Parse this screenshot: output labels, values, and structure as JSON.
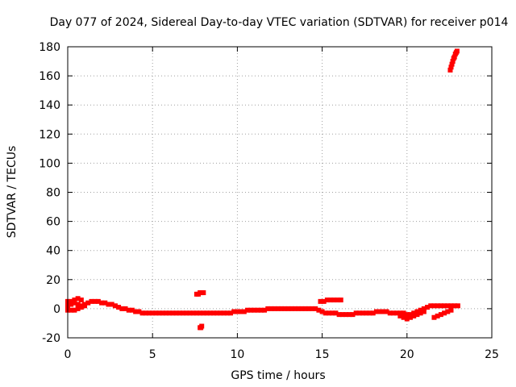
{
  "chart_data": {
    "type": "scatter",
    "title": "Day 077 of 2024, Sidereal Day-to-day VTEC variation (SDTVAR) for receiver p014",
    "xlabel": "GPS time / hours",
    "ylabel": "SDTVAR / TECUs",
    "xlim": [
      0,
      25
    ],
    "ylim": [
      -20,
      180
    ],
    "grid": true,
    "legend": "none",
    "x_ticks": [
      "0",
      "5",
      "10",
      "15",
      "20",
      "25"
    ],
    "y_ticks": [
      "-20",
      "0",
      "20",
      "40",
      "60",
      "80",
      "100",
      "120",
      "140",
      "160",
      "180"
    ],
    "x_tick_values": [
      0,
      5,
      10,
      15,
      20,
      25
    ],
    "y_tick_values": [
      -20,
      0,
      20,
      40,
      60,
      80,
      100,
      120,
      140,
      160,
      180
    ],
    "marker_color": "#ff0000",
    "series": [
      {
        "name": "main-trace",
        "x": [
          0.0,
          0.2,
          0.4,
          0.6,
          0.8,
          1.0,
          1.2,
          1.4,
          1.6,
          1.8,
          2.0,
          2.2,
          2.4,
          2.6,
          2.8,
          3.0,
          3.2,
          3.4,
          3.6,
          3.8,
          4.0,
          4.2,
          4.4,
          4.6,
          4.8,
          5.0,
          5.2,
          5.4,
          5.6,
          5.8,
          6.0,
          6.2,
          6.4,
          6.6,
          6.8,
          7.0,
          7.2,
          7.4,
          7.6,
          7.8,
          8.0,
          8.2,
          8.4,
          8.6,
          8.8,
          9.0,
          9.2,
          9.4,
          9.6,
          9.8,
          10.0,
          10.2,
          10.4,
          10.6,
          10.8,
          11.0,
          11.2,
          11.4,
          11.6,
          11.8,
          12.0,
          12.2,
          12.4,
          12.6,
          12.8,
          13.0,
          13.2,
          13.4,
          13.6,
          13.8,
          14.0,
          14.2,
          14.4,
          14.6,
          14.8,
          15.0,
          15.2,
          15.4,
          15.6,
          15.8,
          16.0,
          16.2,
          16.4,
          16.6,
          16.8,
          17.0,
          17.2,
          17.4,
          17.6,
          17.8,
          18.0,
          18.2,
          18.4,
          18.6,
          18.8,
          19.0,
          19.2,
          19.4,
          19.6,
          19.8,
          20.0,
          20.2,
          20.4,
          20.6,
          20.8,
          21.0,
          21.2,
          21.4,
          21.6,
          21.8,
          22.0,
          22.2,
          22.4,
          22.6,
          22.8,
          23.0
        ],
        "y": [
          2,
          3,
          4,
          3,
          2,
          3,
          4,
          5,
          5,
          5,
          4,
          4,
          3,
          3,
          2,
          1,
          0,
          0,
          -1,
          -1,
          -2,
          -2,
          -3,
          -3,
          -3,
          -3,
          -3,
          -3,
          -3,
          -3,
          -3,
          -3,
          -3,
          -3,
          -3,
          -3,
          -3,
          -3,
          -3,
          -3,
          -3,
          -3,
          -3,
          -3,
          -3,
          -3,
          -3,
          -3,
          -3,
          -2,
          -2,
          -2,
          -2,
          -1,
          -1,
          -1,
          -1,
          -1,
          -1,
          0,
          0,
          0,
          0,
          0,
          0,
          0,
          0,
          0,
          0,
          0,
          0,
          0,
          0,
          0,
          -1,
          -2,
          -3,
          -3,
          -3,
          -3,
          -4,
          -4,
          -4,
          -4,
          -4,
          -3,
          -3,
          -3,
          -3,
          -3,
          -3,
          -2,
          -2,
          -2,
          -2,
          -3,
          -3,
          -3,
          -3,
          -3,
          -4,
          -4,
          -3,
          -2,
          -1,
          0,
          1,
          2,
          2,
          2,
          2,
          2,
          2,
          2,
          2,
          2
        ]
      },
      {
        "name": "lower-branch",
        "x": [
          0.0,
          0.2,
          0.4,
          0.6,
          0.8,
          1.0,
          19.6,
          19.8,
          20.0,
          20.2,
          20.4,
          20.6,
          20.8,
          21.0,
          21.6,
          21.8,
          22.0,
          22.2,
          22.4,
          22.6
        ],
        "y": [
          -1,
          -1,
          -1,
          0,
          1,
          2,
          -5,
          -6,
          -7,
          -6,
          -5,
          -4,
          -3,
          -2,
          -6,
          -5,
          -4,
          -3,
          -2,
          -1
        ]
      },
      {
        "name": "upper-branch",
        "x": [
          0.0,
          0.2,
          0.4,
          0.6,
          0.8
        ],
        "y": [
          5,
          5,
          6,
          7,
          6
        ]
      },
      {
        "name": "segment-near-8h",
        "x": [
          7.6,
          7.7,
          7.8,
          7.9,
          8.0
        ],
        "y": [
          10,
          10,
          11,
          11,
          11
        ]
      },
      {
        "name": "outlier-near-8h",
        "x": [
          7.8,
          7.85,
          7.9
        ],
        "y": [
          -13,
          -13,
          -12
        ]
      },
      {
        "name": "segment-near-15h",
        "x": [
          14.9,
          15.1,
          15.3,
          15.5,
          15.7,
          15.9,
          16.1
        ],
        "y": [
          5,
          5,
          6,
          6,
          6,
          6,
          6
        ]
      },
      {
        "name": "steep-segment-near-22.8h",
        "x": [
          22.55,
          22.6,
          22.65,
          22.7,
          22.75,
          22.8,
          22.85,
          22.9,
          22.95
        ],
        "y": [
          164,
          166,
          168,
          170,
          172,
          173,
          175,
          176,
          177
        ]
      }
    ]
  }
}
